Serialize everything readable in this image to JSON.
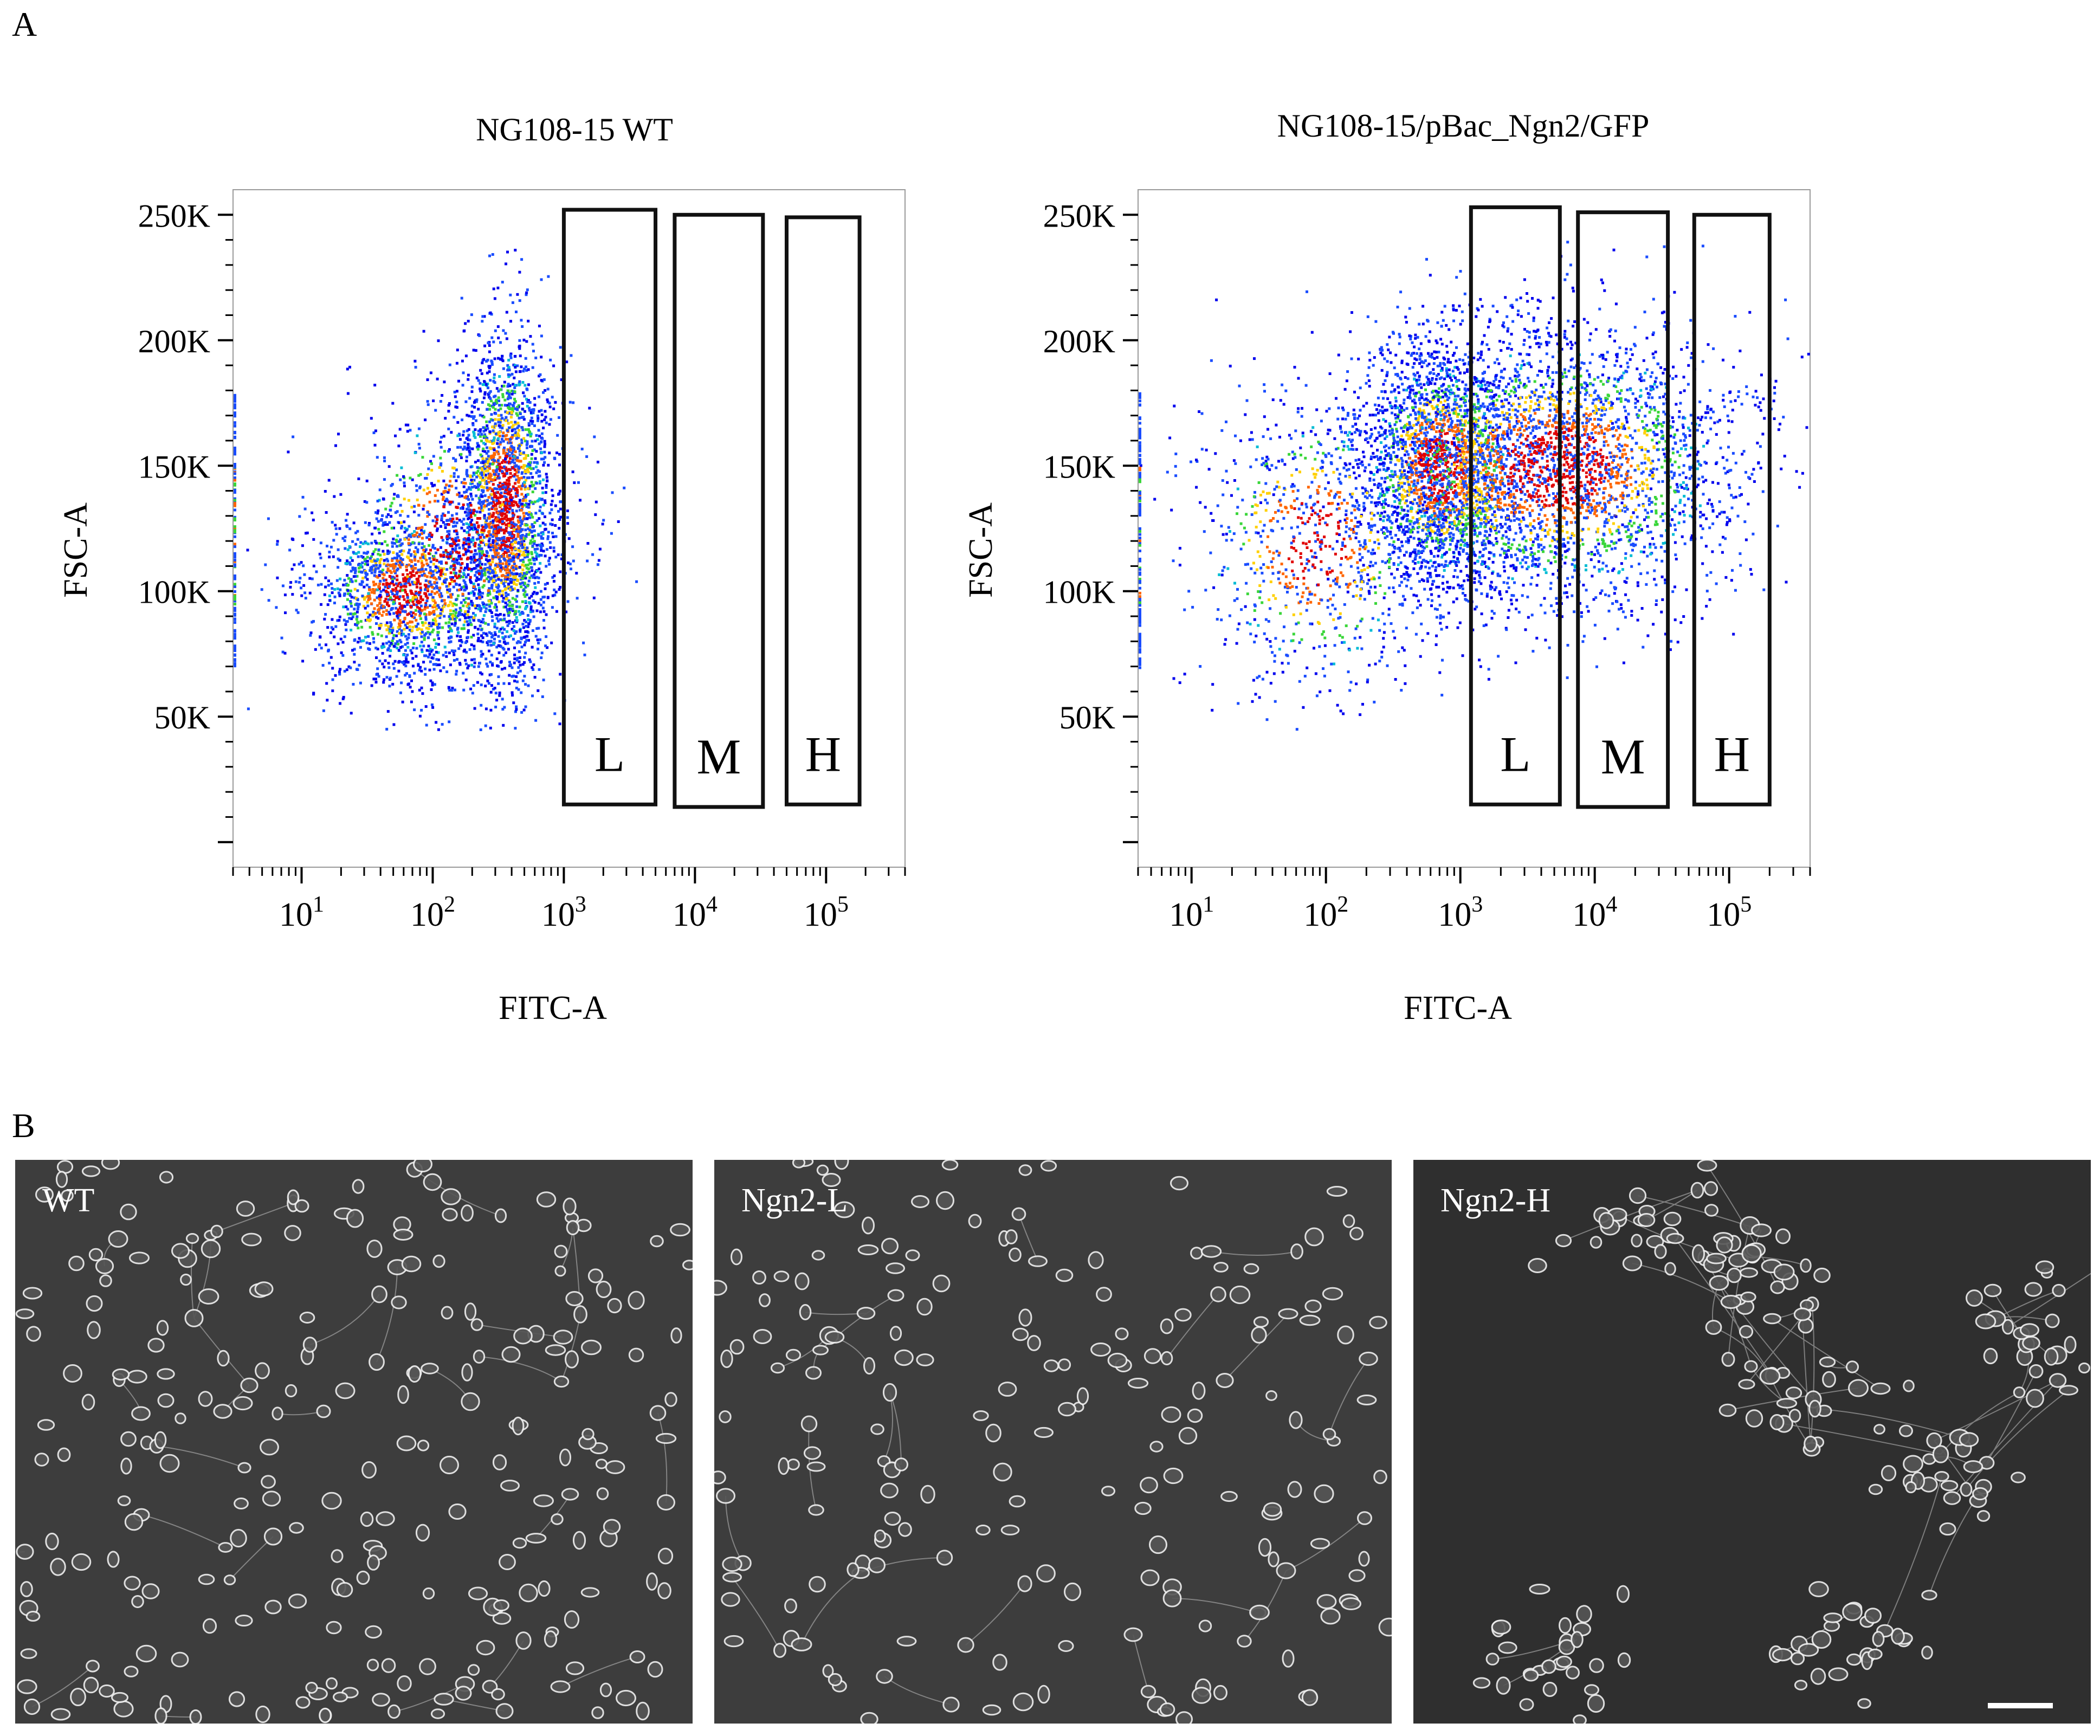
{
  "panels": {
    "a_label": "A",
    "b_label": "B"
  },
  "chart_data": [
    {
      "type": "scatter",
      "title": "NG108-15 WT",
      "xlabel": "FITC-A",
      "ylabel": "FSC-A",
      "xscale": "log",
      "xlim": [
        3,
        400000
      ],
      "ylim": [
        -10000,
        260000
      ],
      "xticks": [
        {
          "value": 10,
          "base": "10",
          "exp": "1"
        },
        {
          "value": 100,
          "base": "10",
          "exp": "2"
        },
        {
          "value": 1000,
          "base": "10",
          "exp": "3"
        },
        {
          "value": 10000,
          "base": "10",
          "exp": "4"
        },
        {
          "value": 100000,
          "base": "10",
          "exp": "5"
        }
      ],
      "yticks": [
        {
          "value": 50000,
          "label": "50K"
        },
        {
          "value": 100000,
          "label": "100K"
        },
        {
          "value": 150000,
          "label": "150K"
        },
        {
          "value": 200000,
          "label": "200K"
        },
        {
          "value": 250000,
          "label": "250K"
        }
      ],
      "gates": [
        {
          "label": "L",
          "x": [
            1000,
            5000
          ],
          "y": [
            15000,
            252000
          ]
        },
        {
          "label": "M",
          "x": [
            7000,
            33000
          ],
          "y": [
            14000,
            250000
          ]
        },
        {
          "label": "H",
          "x": [
            50000,
            180000
          ],
          "y": [
            15000,
            249000
          ]
        }
      ],
      "populations": [
        {
          "center_x": 350,
          "center_y": 135000,
          "spread_x_decades": 0.18,
          "spread_y": 35000,
          "events": 2200
        },
        {
          "center_x": 60,
          "center_y": 100000,
          "spread_x_decades": 0.35,
          "spread_y": 16000,
          "events": 1400
        },
        {
          "center_x": 150,
          "center_y": 120000,
          "spread_x_decades": 0.45,
          "spread_y": 30000,
          "events": 900
        }
      ],
      "density_colors": [
        "#0000ee",
        "#1a4dff",
        "#00bcd4",
        "#3ad63a",
        "#ffd000",
        "#ff6600",
        "#e00000"
      ],
      "grid": false
    },
    {
      "type": "scatter",
      "title": "NG108-15/pBac_Ngn2/GFP",
      "xlabel": "FITC-A",
      "ylabel": "FSC-A",
      "xscale": "log",
      "xlim": [
        4,
        400000
      ],
      "ylim": [
        -10000,
        260000
      ],
      "xticks": [
        {
          "value": 10,
          "base": "10",
          "exp": "1"
        },
        {
          "value": 100,
          "base": "10",
          "exp": "2"
        },
        {
          "value": 1000,
          "base": "10",
          "exp": "3"
        },
        {
          "value": 10000,
          "base": "10",
          "exp": "4"
        },
        {
          "value": 100000,
          "base": "10",
          "exp": "5"
        }
      ],
      "yticks": [
        {
          "value": 50000,
          "label": "50K"
        },
        {
          "value": 100000,
          "label": "100K"
        },
        {
          "value": 150000,
          "label": "150K"
        },
        {
          "value": 200000,
          "label": "200K"
        },
        {
          "value": 250000,
          "label": "250K"
        }
      ],
      "gates": [
        {
          "label": "L",
          "x": [
            1200,
            5500
          ],
          "y": [
            15000,
            253000
          ]
        },
        {
          "label": "M",
          "x": [
            7500,
            35000
          ],
          "y": [
            14000,
            251000
          ]
        },
        {
          "label": "H",
          "x": [
            55000,
            200000
          ],
          "y": [
            15000,
            250000
          ]
        }
      ],
      "populations": [
        {
          "center_x": 700,
          "center_y": 150000,
          "spread_x_decades": 0.3,
          "spread_y": 25000,
          "events": 2200
        },
        {
          "center_x": 5000,
          "center_y": 150000,
          "spread_x_decades": 0.7,
          "spread_y": 28000,
          "events": 3200
        },
        {
          "center_x": 80,
          "center_y": 120000,
          "spread_x_decades": 0.45,
          "spread_y": 30000,
          "events": 800
        }
      ],
      "density_colors": [
        "#0000ee",
        "#1a4dff",
        "#00bcd4",
        "#3ad63a",
        "#ffd000",
        "#ff6600",
        "#e00000"
      ],
      "grid": false
    }
  ],
  "micrographs": [
    {
      "label": "WT",
      "style": "dense",
      "scale_bar": false
    },
    {
      "label": "Ngn2-L",
      "style": "network",
      "scale_bar": false
    },
    {
      "label": "Ngn2-H",
      "style": "clustered",
      "scale_bar": true
    }
  ]
}
